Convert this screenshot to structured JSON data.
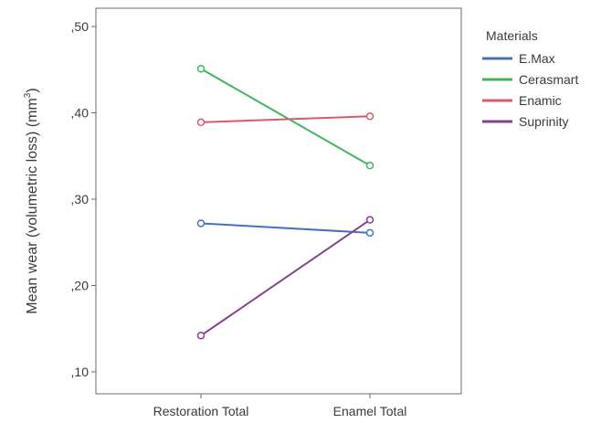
{
  "chart_data": {
    "type": "line",
    "title": "",
    "xlabel": "",
    "ylabel": "Mean wear (volumetric loss) (mm",
    "ylabel_sup": "3",
    "ylabel_end": ")",
    "categories": [
      "Restoration Total",
      "Enamel Total"
    ],
    "ylim": [
      0.085,
      0.525
    ],
    "yticks": [
      0.1,
      0.2,
      0.3,
      0.4,
      0.5
    ],
    "ytick_labels": [
      ",10",
      ",20",
      ",30",
      ",40",
      ",50"
    ],
    "grid": false,
    "legend": {
      "title": "Materials",
      "position": "right"
    },
    "series": [
      {
        "name": "E.Max",
        "color": "#4a6fc2",
        "values": [
          0.272,
          0.261
        ]
      },
      {
        "name": "Cerasmart",
        "color": "#3fb65b",
        "values": [
          0.451,
          0.339
        ]
      },
      {
        "name": "Enamic",
        "color": "#d9596a",
        "values": [
          0.389,
          0.396
        ]
      },
      {
        "name": "Suprinity",
        "color": "#8a3d93",
        "values": [
          0.142,
          0.276
        ]
      }
    ]
  }
}
